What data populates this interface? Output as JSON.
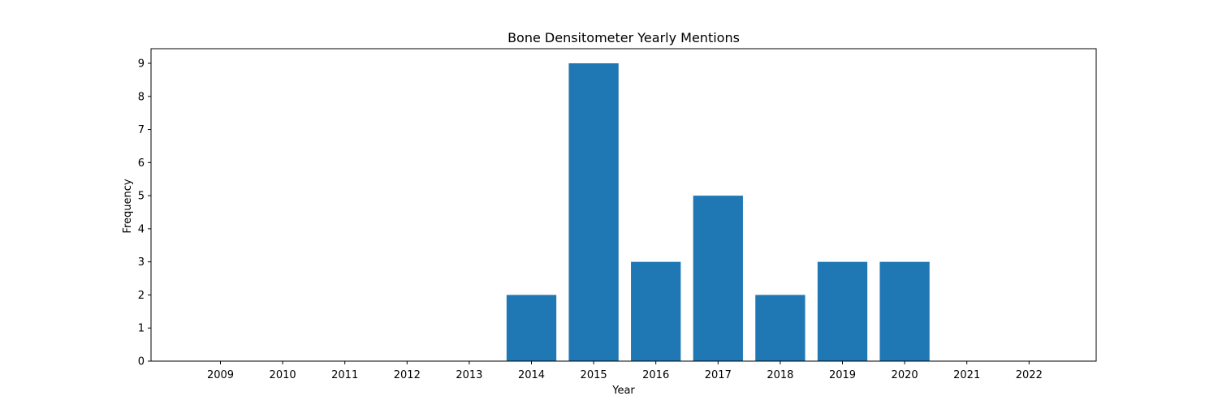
{
  "chart_data": {
    "type": "bar",
    "title": "Bone Densitometer Yearly Mentions",
    "xlabel": "Year",
    "ylabel": "Frequency",
    "categories": [
      "2009",
      "2010",
      "2011",
      "2012",
      "2013",
      "2014",
      "2015",
      "2016",
      "2017",
      "2018",
      "2019",
      "2020",
      "2021",
      "2022"
    ],
    "values": [
      0,
      0,
      0,
      0,
      0,
      2,
      9,
      3,
      5,
      2,
      3,
      3,
      0,
      0
    ],
    "y_ticks": [
      0,
      1,
      2,
      3,
      4,
      5,
      6,
      7,
      8,
      9
    ],
    "ylim": [
      0,
      9
    ],
    "grid": false,
    "legend": "none",
    "bar_color": "#1f77b4"
  }
}
